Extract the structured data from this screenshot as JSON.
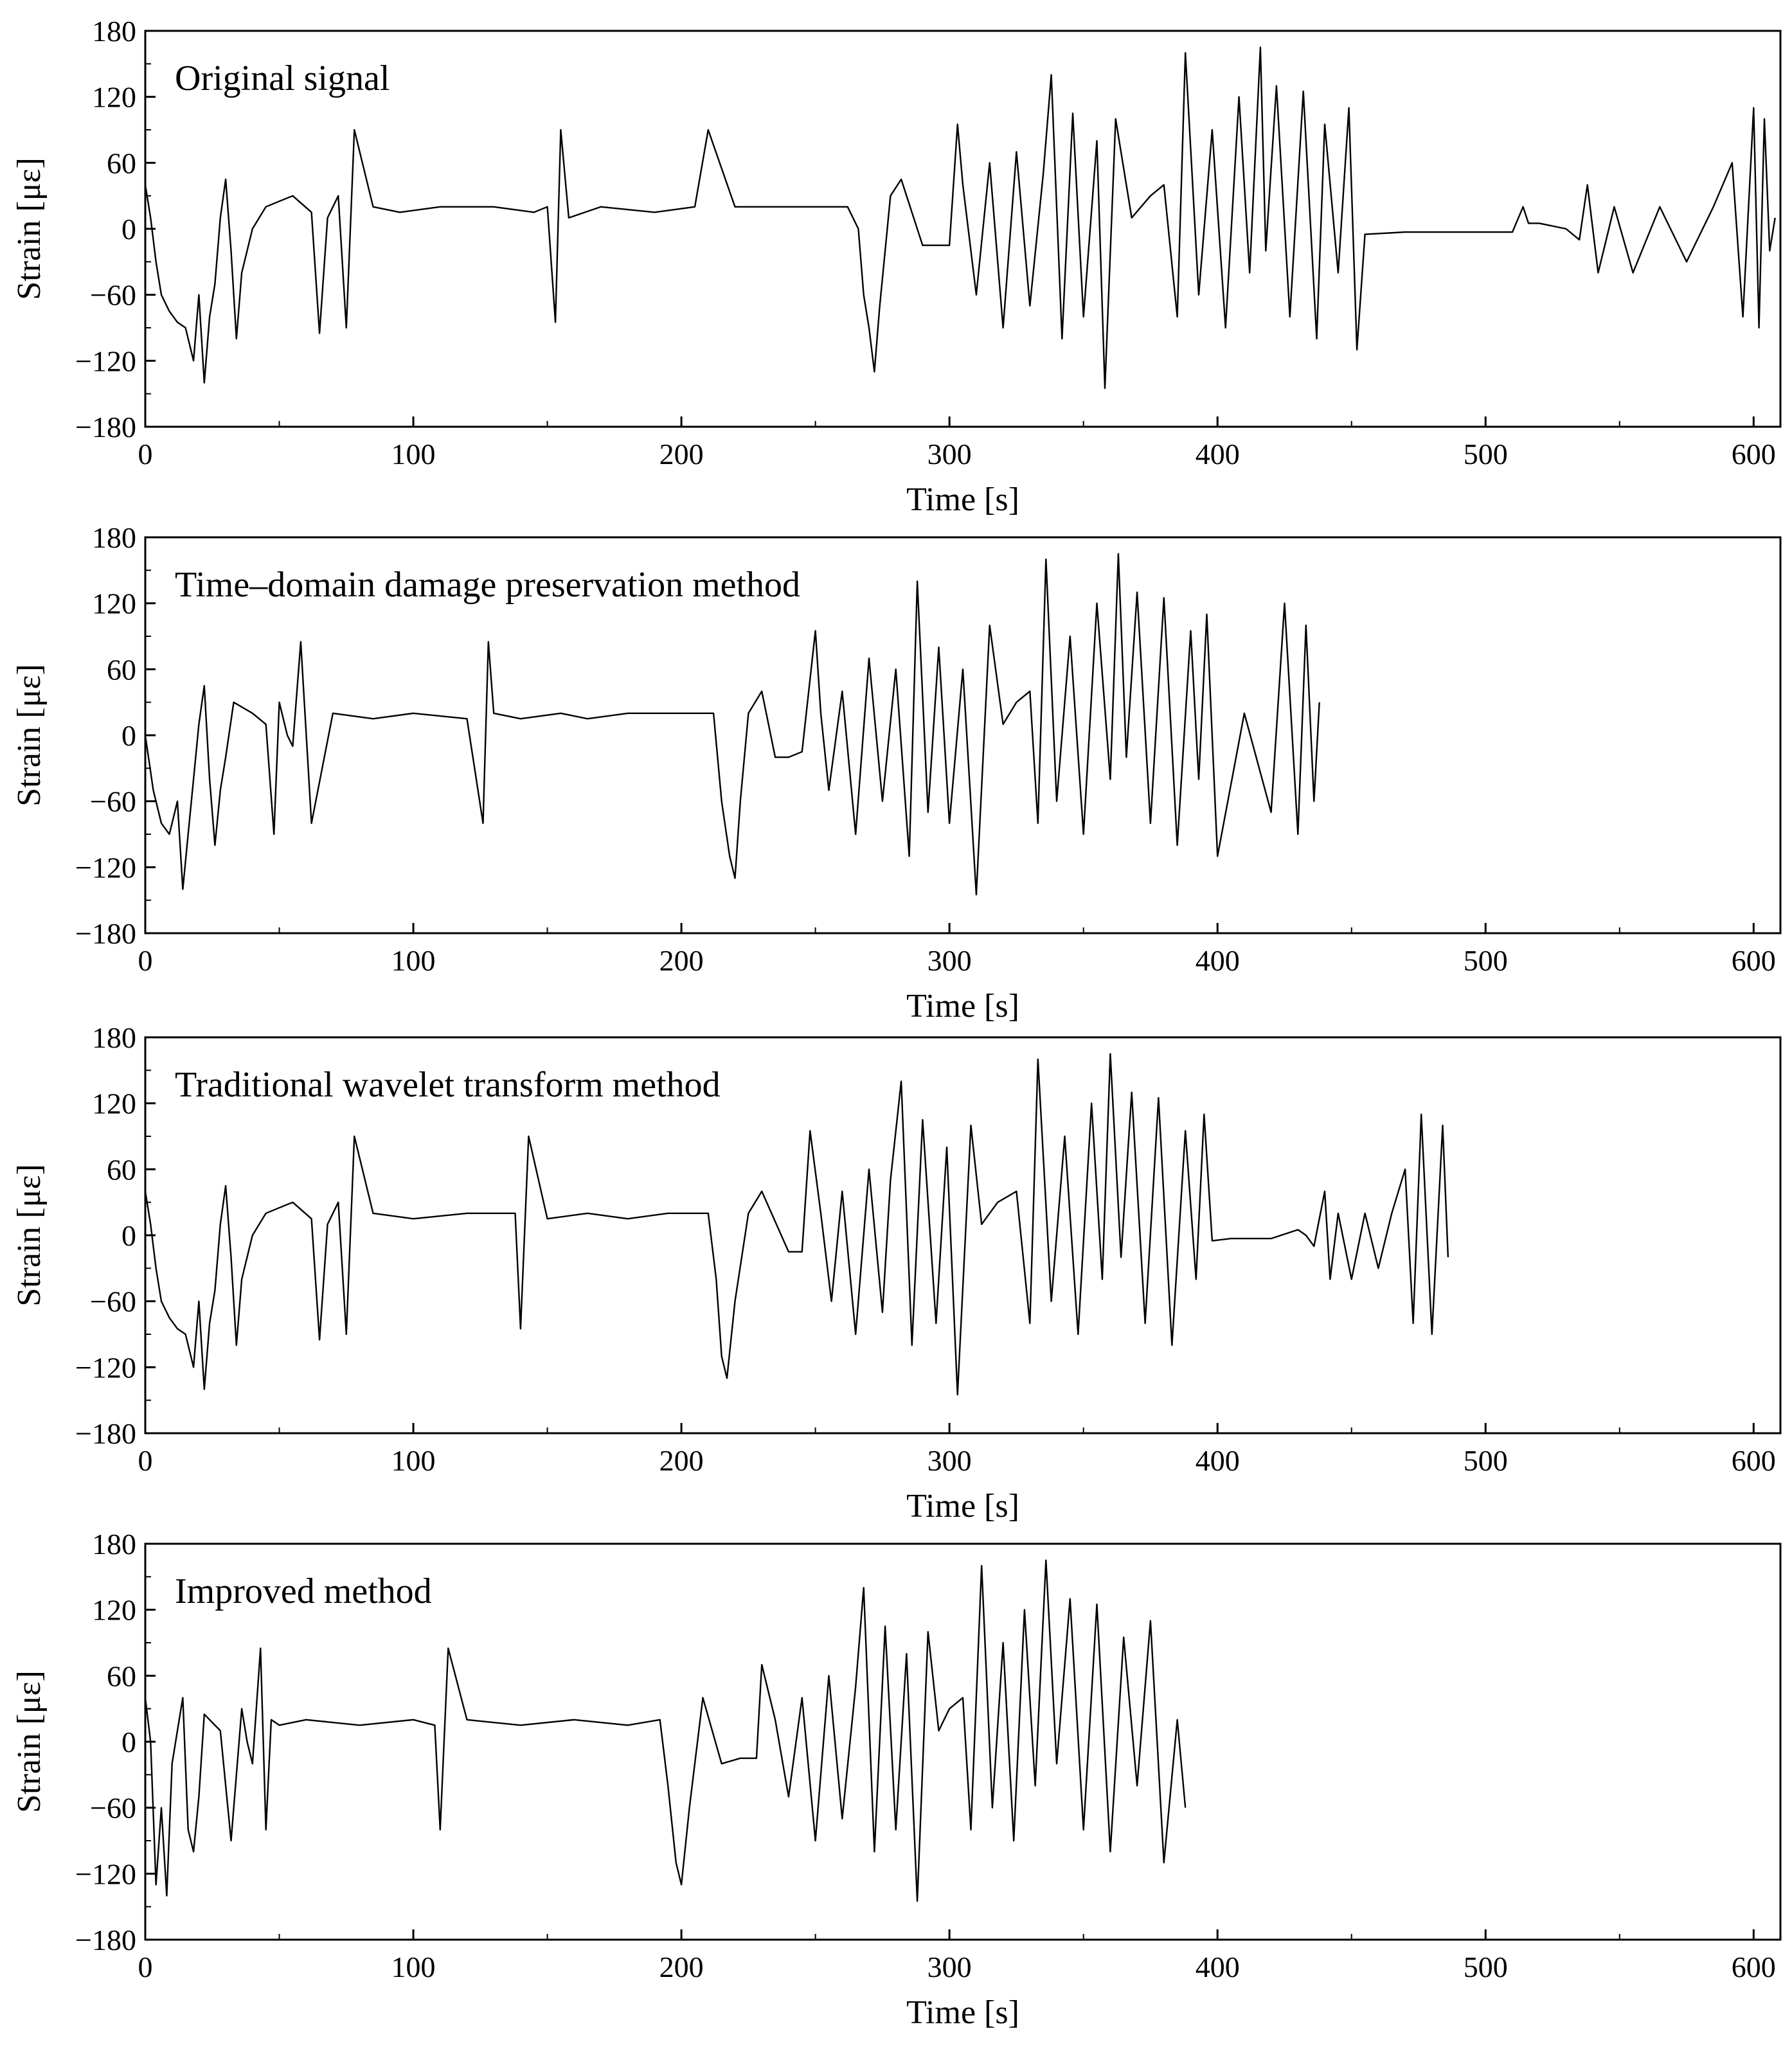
{
  "chart_data": [
    {
      "type": "line",
      "panel_label": "Original signal",
      "xlabel": "Time [s]",
      "ylabel": "Strain [με]",
      "xlim": [
        0,
        610
      ],
      "ylim": [
        -180,
        180
      ],
      "xticks": [
        0,
        100,
        200,
        300,
        400,
        500,
        600
      ],
      "yticks": [
        -180,
        -120,
        -60,
        0,
        60,
        120,
        180
      ],
      "grid": false,
      "line_color": "#000000",
      "series": [
        {
          "x": [
            0,
            2,
            4,
            6,
            9,
            12,
            15,
            18,
            20,
            22,
            24,
            26,
            28,
            30,
            32,
            34,
            36,
            40,
            45,
            50,
            55,
            62,
            65,
            68,
            72,
            75,
            78,
            85,
            95,
            110,
            130,
            145,
            150,
            153,
            155,
            158,
            170,
            190,
            205,
            210,
            220,
            235,
            250,
            262,
            266,
            268,
            270,
            272,
            274,
            276,
            278,
            282,
            290,
            295,
            300,
            303,
            305,
            310,
            315,
            320,
            325,
            330,
            335,
            338,
            342,
            346,
            350,
            355,
            358,
            362,
            368,
            375,
            380,
            385,
            388,
            393,
            398,
            403,
            408,
            412,
            416,
            418,
            422,
            427,
            432,
            437,
            440,
            445,
            449,
            452,
            455,
            470,
            490,
            510,
            514,
            516,
            520,
            530,
            535,
            538,
            542,
            548,
            555,
            565,
            575,
            585,
            592,
            596,
            600,
            602,
            604,
            606,
            608
          ],
          "y": [
            40,
            10,
            -30,
            -60,
            -75,
            -85,
            -90,
            -120,
            -60,
            -140,
            -80,
            -50,
            10,
            45,
            -20,
            -100,
            -40,
            0,
            20,
            25,
            30,
            15,
            -95,
            10,
            30,
            -90,
            90,
            20,
            15,
            20,
            20,
            15,
            20,
            -85,
            90,
            10,
            20,
            15,
            20,
            90,
            20,
            20,
            20,
            20,
            0,
            -60,
            -90,
            -130,
            -70,
            -20,
            30,
            45,
            -15,
            -15,
            -15,
            95,
            40,
            -60,
            60,
            -90,
            70,
            -70,
            50,
            140,
            -100,
            105,
            -80,
            80,
            -145,
            100,
            10,
            30,
            40,
            -80,
            160,
            -60,
            90,
            -90,
            120,
            -40,
            165,
            -20,
            130,
            -80,
            125,
            -100,
            95,
            -40,
            110,
            -110,
            -5,
            -3,
            -3,
            -3,
            20,
            5,
            5,
            0,
            -10,
            40,
            -40,
            20,
            -40,
            20,
            -30,
            20,
            60,
            -80,
            110,
            -90,
            100,
            -20,
            10
          ]
        }
      ]
    },
    {
      "type": "line",
      "panel_label": "Time–domain damage preservation method",
      "xlabel": "Time [s]",
      "ylabel": "Strain [με]",
      "xlim": [
        0,
        610
      ],
      "ylim": [
        -180,
        180
      ],
      "xticks": [
        0,
        100,
        200,
        300,
        400,
        500,
        600
      ],
      "yticks": [
        -180,
        -120,
        -60,
        0,
        60,
        120,
        180
      ],
      "grid": false,
      "line_color": "#000000",
      "series": [
        {
          "x": [
            0,
            3,
            6,
            9,
            12,
            14,
            16,
            18,
            20,
            22,
            24,
            26,
            28,
            30,
            33,
            40,
            45,
            48,
            50,
            53,
            55,
            58,
            62,
            70,
            85,
            100,
            120,
            126,
            128,
            130,
            140,
            155,
            165,
            180,
            200,
            212,
            215,
            218,
            220,
            222,
            225,
            230,
            235,
            240,
            245,
            250,
            252,
            255,
            260,
            265,
            270,
            275,
            280,
            285,
            288,
            292,
            296,
            300,
            305,
            310,
            315,
            320,
            325,
            330,
            333,
            336,
            340,
            345,
            350,
            355,
            360,
            363,
            366,
            370,
            375,
            380,
            385,
            390,
            393,
            396,
            400,
            410,
            420,
            425,
            430,
            433,
            436,
            438
          ],
          "y": [
            0,
            -50,
            -80,
            -90,
            -60,
            -140,
            -90,
            -40,
            10,
            45,
            -40,
            -100,
            -50,
            -20,
            30,
            20,
            10,
            -90,
            30,
            0,
            -10,
            85,
            -80,
            20,
            15,
            20,
            15,
            -80,
            85,
            20,
            15,
            20,
            15,
            20,
            20,
            20,
            -60,
            -110,
            -130,
            -60,
            20,
            40,
            -20,
            -20,
            -15,
            95,
            20,
            -50,
            40,
            -90,
            70,
            -60,
            60,
            -110,
            140,
            -70,
            80,
            -80,
            60,
            -145,
            100,
            10,
            30,
            40,
            -80,
            160,
            -60,
            90,
            -90,
            120,
            -40,
            165,
            -20,
            130,
            -80,
            125,
            -100,
            95,
            -40,
            110,
            -110,
            20,
            -70,
            120,
            -90,
            100,
            -60,
            30
          ]
        }
      ]
    },
    {
      "type": "line",
      "panel_label": "Traditional wavelet transform method",
      "xlabel": "Time [s]",
      "ylabel": "Strain [με]",
      "xlim": [
        0,
        610
      ],
      "ylim": [
        -180,
        180
      ],
      "xticks": [
        0,
        100,
        200,
        300,
        400,
        500,
        600
      ],
      "yticks": [
        -180,
        -120,
        -60,
        0,
        60,
        120,
        180
      ],
      "grid": false,
      "line_color": "#000000",
      "series": [
        {
          "x": [
            0,
            2,
            4,
            6,
            9,
            12,
            15,
            18,
            20,
            22,
            24,
            26,
            28,
            30,
            32,
            34,
            36,
            40,
            45,
            50,
            55,
            62,
            65,
            68,
            72,
            75,
            78,
            85,
            100,
            120,
            138,
            140,
            143,
            150,
            165,
            180,
            195,
            210,
            213,
            215,
            217,
            220,
            225,
            230,
            240,
            245,
            248,
            252,
            256,
            260,
            265,
            270,
            275,
            278,
            282,
            286,
            290,
            295,
            299,
            303,
            308,
            312,
            318,
            325,
            330,
            333,
            338,
            343,
            348,
            353,
            357,
            360,
            364,
            368,
            373,
            378,
            383,
            388,
            392,
            395,
            398,
            405,
            420,
            430,
            433,
            436,
            440,
            442,
            445,
            450,
            455,
            460,
            465,
            470,
            473,
            476,
            480,
            484,
            486
          ],
          "y": [
            40,
            10,
            -30,
            -60,
            -75,
            -85,
            -90,
            -120,
            -60,
            -140,
            -80,
            -50,
            10,
            45,
            -20,
            -100,
            -40,
            0,
            20,
            25,
            30,
            15,
            -95,
            10,
            30,
            -90,
            90,
            20,
            15,
            20,
            20,
            -85,
            90,
            15,
            20,
            15,
            20,
            20,
            -40,
            -110,
            -130,
            -60,
            20,
            40,
            -15,
            -15,
            95,
            20,
            -60,
            40,
            -90,
            60,
            -70,
            50,
            140,
            -100,
            105,
            -80,
            80,
            -145,
            100,
            10,
            30,
            40,
            -80,
            160,
            -60,
            90,
            -90,
            120,
            -40,
            165,
            -20,
            130,
            -80,
            125,
            -100,
            95,
            -40,
            110,
            -5,
            -3,
            -3,
            5,
            0,
            -10,
            40,
            -40,
            20,
            -40,
            20,
            -30,
            20,
            60,
            -80,
            110,
            -90,
            100,
            -20
          ]
        }
      ]
    },
    {
      "type": "line",
      "panel_label": "Improved method",
      "xlabel": "Time [s]",
      "ylabel": "Strain [με]",
      "xlim": [
        0,
        610
      ],
      "ylim": [
        -180,
        180
      ],
      "xticks": [
        0,
        100,
        200,
        300,
        400,
        500,
        600
      ],
      "yticks": [
        -180,
        -120,
        -60,
        0,
        60,
        120,
        180
      ],
      "grid": false,
      "line_color": "#000000",
      "series": [
        {
          "x": [
            0,
            2,
            4,
            6,
            8,
            10,
            12,
            14,
            16,
            18,
            20,
            22,
            24,
            28,
            32,
            36,
            38,
            40,
            43,
            45,
            47,
            50,
            60,
            80,
            100,
            108,
            110,
            113,
            120,
            140,
            160,
            180,
            192,
            195,
            198,
            200,
            203,
            208,
            215,
            222,
            228,
            230,
            235,
            240,
            245,
            250,
            255,
            260,
            265,
            268,
            272,
            276,
            280,
            284,
            288,
            292,
            296,
            300,
            305,
            308,
            312,
            316,
            320,
            324,
            328,
            332,
            336,
            340,
            345,
            350,
            355,
            360,
            365,
            370,
            375,
            380,
            385,
            388
          ],
          "y": [
            40,
            0,
            -130,
            -60,
            -140,
            -20,
            10,
            40,
            -80,
            -100,
            -50,
            25,
            20,
            10,
            -90,
            30,
            0,
            -20,
            85,
            -80,
            20,
            15,
            20,
            15,
            20,
            15,
            -80,
            85,
            20,
            15,
            20,
            15,
            20,
            -40,
            -110,
            -130,
            -60,
            40,
            -20,
            -15,
            -15,
            70,
            20,
            -50,
            40,
            -90,
            60,
            -70,
            50,
            140,
            -100,
            105,
            -80,
            80,
            -145,
            100,
            10,
            30,
            40,
            -80,
            160,
            -60,
            90,
            -90,
            120,
            -40,
            165,
            -20,
            130,
            -80,
            125,
            -100,
            95,
            -40,
            110,
            -110,
            20,
            -60
          ]
        }
      ]
    }
  ]
}
